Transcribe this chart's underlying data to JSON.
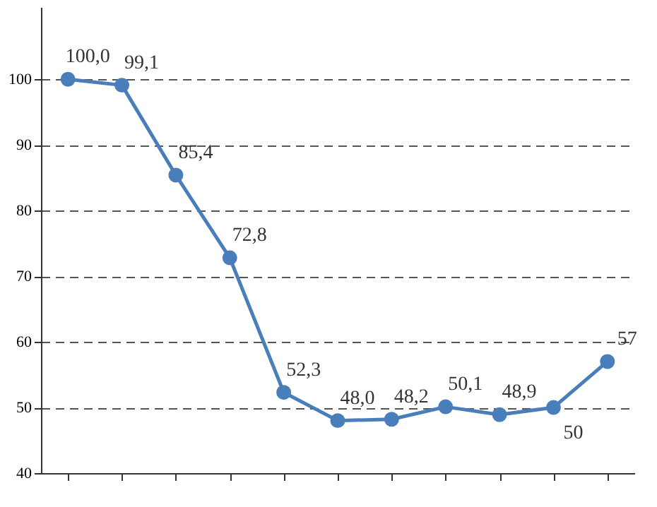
{
  "chart_data": {
    "type": "line",
    "categories": [
      null,
      null,
      null,
      null,
      null,
      null,
      null,
      null,
      null,
      null,
      null
    ],
    "series": [
      {
        "color": "#4a7ebb",
        "values": [
          100.0,
          99.1,
          85.4,
          72.8,
          52.3,
          48.0,
          48.2,
          50.1,
          48.9,
          50,
          57
        ],
        "value_labels": [
          "100,0",
          "99,1",
          "85,4",
          "72,8",
          "52,3",
          "48,0",
          "48,2",
          "50,1",
          "48,9",
          "50",
          "57"
        ]
      }
    ],
    "ylim": [
      40,
      111
    ],
    "yticks": [
      40,
      50,
      60,
      70,
      80,
      90,
      100
    ],
    "grid": "y",
    "marker": "circle",
    "line_style": "solid",
    "tick_labels": "y"
  }
}
